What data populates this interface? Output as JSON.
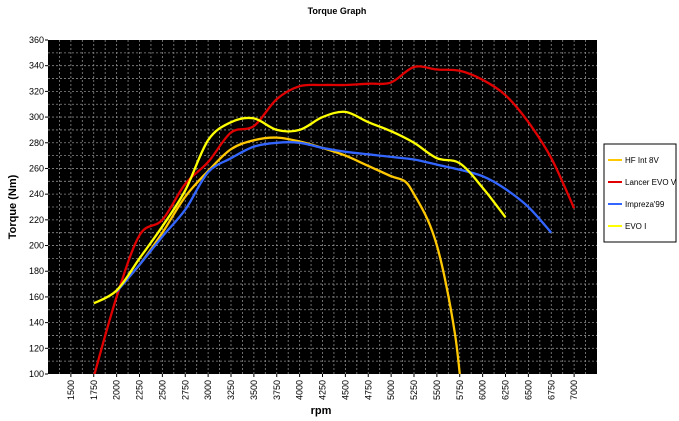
{
  "chart_data": {
    "type": "line",
    "title": "Torque Graph",
    "xlabel": "rpm",
    "ylabel": "Torque (Nm)",
    "xlim": [
      1250,
      7250
    ],
    "ylim": [
      100,
      360
    ],
    "x_ticks": [
      1500,
      1750,
      2000,
      2250,
      2500,
      2750,
      3000,
      3250,
      3500,
      3750,
      4000,
      4250,
      4500,
      4750,
      5000,
      5250,
      5500,
      5750,
      6000,
      6250,
      6500,
      6750,
      7000
    ],
    "y_ticks": [
      100,
      120,
      140,
      160,
      180,
      200,
      220,
      240,
      260,
      280,
      300,
      320,
      340,
      360
    ],
    "grid": true,
    "background": "#000000",
    "legend_position": "right",
    "series": [
      {
        "name": "HF Int 8V",
        "color": "#ffc800",
        "x": [
          2000,
          2250,
          2500,
          2750,
          3000,
          3250,
          3500,
          3750,
          4000,
          4250,
          4500,
          4750,
          5000,
          5150,
          5250,
          5400,
          5500,
          5600,
          5700,
          5750
        ],
        "y": [
          165,
          185,
          210,
          238,
          258,
          275,
          282,
          284,
          281,
          276,
          270,
          262,
          254,
          250,
          240,
          220,
          200,
          170,
          130,
          100
        ]
      },
      {
        "name": "Lancer EVO V",
        "color": "#e00000",
        "x": [
          1750,
          2000,
          2250,
          2500,
          2750,
          3000,
          3250,
          3500,
          3750,
          4000,
          4250,
          4500,
          4750,
          5000,
          5250,
          5500,
          5750,
          6000,
          6250,
          6500,
          6750,
          7000
        ],
        "y": [
          98,
          160,
          208,
          220,
          248,
          265,
          288,
          293,
          314,
          324,
          325,
          325,
          326,
          327,
          339,
          337,
          336,
          329,
          317,
          296,
          268,
          229
        ]
      },
      {
        "name": "Impreza'99",
        "color": "#3366ff",
        "x": [
          2000,
          2250,
          2500,
          2750,
          3000,
          3250,
          3500,
          3750,
          4000,
          4250,
          4500,
          4750,
          5000,
          5250,
          5500,
          5750,
          6000,
          6250,
          6500,
          6750
        ],
        "y": [
          164,
          185,
          207,
          228,
          257,
          268,
          277,
          280,
          280,
          276,
          273,
          271,
          269,
          267,
          263,
          259,
          254,
          244,
          230,
          210
        ]
      },
      {
        "name": "EVO I",
        "color": "#ffff00",
        "x": [
          1750,
          2000,
          2250,
          2500,
          2750,
          3000,
          3250,
          3500,
          3750,
          4000,
          4250,
          4500,
          4750,
          5000,
          5250,
          5500,
          5750,
          6000,
          6250
        ],
        "y": [
          155,
          165,
          190,
          215,
          243,
          282,
          296,
          299,
          290,
          290,
          300,
          304,
          296,
          289,
          280,
          268,
          264,
          245,
          222
        ]
      }
    ]
  }
}
